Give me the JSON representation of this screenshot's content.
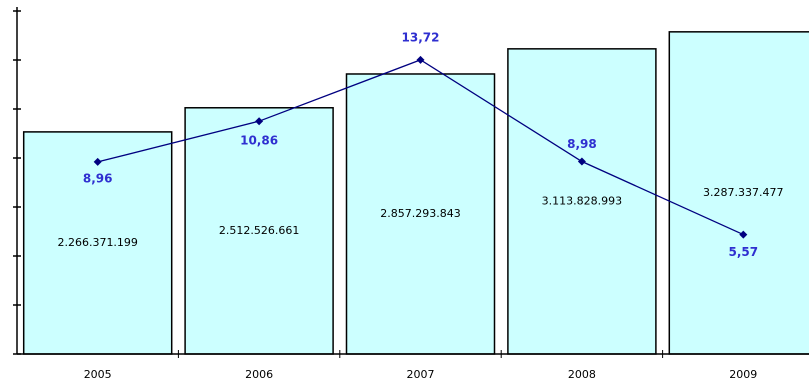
{
  "chart_data": {
    "type": "bar",
    "categories": [
      "2005",
      "2006",
      "2007",
      "2008",
      "2009"
    ],
    "values": [
      2266371199,
      2512526661,
      2857293843,
      3113828993,
      3287337477
    ],
    "value_labels": [
      "2.266.371.199",
      "2.512.526.661",
      "2.857.293.843",
      "3.113.828.993",
      "3.287.337.477"
    ],
    "color": "#ccffff",
    "ylim": [
      0,
      3500000000
    ],
    "yticks": [
      0,
      500000000,
      1000000000,
      1500000000,
      2000000000,
      2500000000,
      3000000000,
      3500000000
    ],
    "y2lim": [
      0,
      16
    ],
    "line": {
      "type": "line",
      "axis": "y2",
      "color": "#000080",
      "label_color": "#2f2fd0",
      "values": [
        8.96,
        10.86,
        13.72,
        8.98,
        5.57
      ],
      "value_labels": [
        "8,96",
        "10,86",
        "13,72",
        "8,98",
        "5,57"
      ]
    }
  }
}
